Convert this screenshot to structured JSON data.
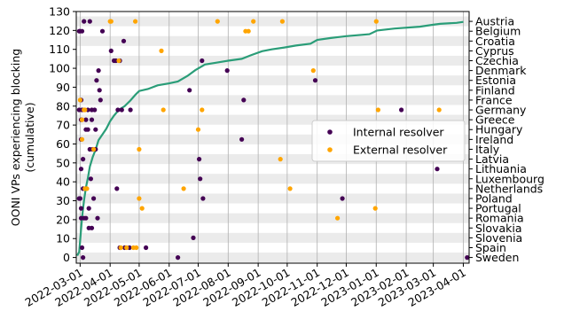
{
  "chart_data": {
    "type": "scatter",
    "xlabel": "",
    "ylabel": [
      "OONI VPs experiencing blocking",
      "(cumulative)"
    ],
    "xlim": [
      "2022-02-25",
      "2023-04-07"
    ],
    "ylim": [
      -3,
      130
    ],
    "left_yticks": [
      0,
      10,
      20,
      30,
      40,
      50,
      60,
      70,
      80,
      90,
      100,
      110,
      120,
      130
    ],
    "xticks": [
      "2022-03-01",
      "2022-04-01",
      "2022-05-01",
      "2022-06-01",
      "2022-07-01",
      "2022-08-01",
      "2022-09-01",
      "2022-10-01",
      "2022-11-01",
      "2022-12-01",
      "2023-01-01",
      "2023-02-01",
      "2023-03-01",
      "2023-04-01"
    ],
    "countries": [
      "Sweden",
      "Spain",
      "Slovenia",
      "Slovakia",
      "Romania",
      "Portugal",
      "Poland",
      "Netherlands",
      "Luxembourg",
      "Lithuania",
      "Latvia",
      "Italy",
      "Ireland",
      "Hungary",
      "Greece",
      "Germany",
      "France",
      "Finland",
      "Estonia",
      "Denmark",
      "Czechia",
      "Cyprus",
      "Croatia",
      "Belgium",
      "Austria"
    ],
    "country_positions": [
      0,
      5.2,
      10.4,
      15.6,
      20.8,
      26,
      31.2,
      36.4,
      41.6,
      46.8,
      52,
      57.2,
      62.4,
      67.6,
      72.8,
      78,
      83.2,
      88.4,
      93.6,
      98.8,
      104,
      109.2,
      114.4,
      119.6,
      124.8
    ],
    "band_color": "#ebebeb",
    "grid": "vertical",
    "legend_position": "center-right",
    "series": [
      {
        "name": "Internal resolver",
        "kind": "points",
        "color": "#440154",
        "points": [
          [
            "2022-03-05",
            124.8
          ],
          [
            "2022-03-11",
            124.8
          ],
          [
            "2022-02-28",
            119.6
          ],
          [
            "2022-03-01",
            119.6
          ],
          [
            "2022-03-03",
            119.6
          ],
          [
            "2022-03-24",
            119.6
          ],
          [
            "2022-04-15",
            114.4
          ],
          [
            "2022-04-02",
            109.2
          ],
          [
            "2022-04-05",
            104
          ],
          [
            "2022-04-07",
            104
          ],
          [
            "2022-04-11",
            104
          ],
          [
            "2022-07-05",
            104
          ],
          [
            "2022-03-20",
            98.8
          ],
          [
            "2022-07-31",
            98.8
          ],
          [
            "2022-03-18",
            93.6
          ],
          [
            "2022-10-30",
            93.6
          ],
          [
            "2022-03-21",
            88.4
          ],
          [
            "2022-06-22",
            88.4
          ],
          [
            "2022-03-02",
            83.2
          ],
          [
            "2022-03-22",
            83.2
          ],
          [
            "2022-08-17",
            83.2
          ],
          [
            "2022-02-28",
            78
          ],
          [
            "2022-03-03",
            78
          ],
          [
            "2022-03-09",
            78
          ],
          [
            "2022-03-13",
            78
          ],
          [
            "2022-03-16",
            78
          ],
          [
            "2022-04-09",
            78
          ],
          [
            "2022-04-13",
            78
          ],
          [
            "2022-04-22",
            78
          ],
          [
            "2023-01-27",
            78
          ],
          [
            "2022-03-02",
            72.8
          ],
          [
            "2022-03-07",
            72.8
          ],
          [
            "2022-03-13",
            72.8
          ],
          [
            "2022-03-07",
            67.6
          ],
          [
            "2022-03-09",
            67.6
          ],
          [
            "2022-03-17",
            67.6
          ],
          [
            "2022-03-02",
            62.4
          ],
          [
            "2022-08-15",
            62.4
          ],
          [
            "2022-03-11",
            57.2
          ],
          [
            "2022-03-14",
            57.2
          ],
          [
            "2022-03-17",
            57.2
          ],
          [
            "2022-03-04",
            52
          ],
          [
            "2022-07-02",
            52
          ],
          [
            "2022-03-02",
            46.8
          ],
          [
            "2023-03-05",
            46.8
          ],
          [
            "2022-03-12",
            41.6
          ],
          [
            "2022-07-03",
            41.6
          ],
          [
            "2022-03-04",
            36.4
          ],
          [
            "2022-04-08",
            36.4
          ],
          [
            "2022-02-28",
            31.2
          ],
          [
            "2022-03-01",
            31.2
          ],
          [
            "2022-03-15",
            31.2
          ],
          [
            "2022-07-06",
            31.2
          ],
          [
            "2022-11-27",
            31.2
          ],
          [
            "2022-03-02",
            26
          ],
          [
            "2022-03-10",
            26
          ],
          [
            "2022-03-02",
            20.8
          ],
          [
            "2022-03-05",
            20.8
          ],
          [
            "2022-03-07",
            20.8
          ],
          [
            "2022-03-19",
            20.8
          ],
          [
            "2022-03-10",
            15.6
          ],
          [
            "2022-03-13",
            15.6
          ],
          [
            "2022-06-26",
            10.4
          ],
          [
            "2022-03-03",
            5.2
          ],
          [
            "2022-04-11",
            5.2
          ],
          [
            "2022-04-16",
            5.2
          ],
          [
            "2022-04-21",
            5.2
          ],
          [
            "2022-05-08",
            5.2
          ],
          [
            "2022-03-04",
            0
          ],
          [
            "2022-06-10",
            0
          ],
          [
            "2023-04-05",
            0
          ]
        ]
      },
      {
        "name": "External resolver",
        "kind": "points",
        "color": "#ffa500",
        "points": [
          [
            "2022-04-01",
            124.8
          ],
          [
            "2022-04-02",
            124.8
          ],
          [
            "2022-04-27",
            124.8
          ],
          [
            "2022-07-21",
            124.8
          ],
          [
            "2022-08-27",
            124.8
          ],
          [
            "2022-09-26",
            124.8
          ],
          [
            "2023-01-01",
            124.8
          ],
          [
            "2022-08-19",
            119.6
          ],
          [
            "2022-08-22",
            119.6
          ],
          [
            "2022-05-24",
            109.2
          ],
          [
            "2022-04-10",
            104
          ],
          [
            "2022-10-28",
            98.8
          ],
          [
            "2022-03-01",
            83.2
          ],
          [
            "2022-03-05",
            78
          ],
          [
            "2022-03-06",
            78
          ],
          [
            "2022-05-26",
            78
          ],
          [
            "2022-07-05",
            78
          ],
          [
            "2023-01-03",
            78
          ],
          [
            "2023-03-07",
            78
          ],
          [
            "2022-03-03",
            72.8
          ],
          [
            "2022-07-01",
            67.6
          ],
          [
            "2022-03-03",
            62.4
          ],
          [
            "2022-03-15",
            57.2
          ],
          [
            "2022-05-01",
            57.2
          ],
          [
            "2022-09-24",
            52
          ],
          [
            "2022-03-06",
            36.4
          ],
          [
            "2022-03-08",
            36.4
          ],
          [
            "2022-06-16",
            36.4
          ],
          [
            "2022-10-04",
            36.4
          ],
          [
            "2022-05-01",
            31.2
          ],
          [
            "2022-05-04",
            26
          ],
          [
            "2022-12-31",
            26
          ],
          [
            "2022-11-22",
            20.8
          ],
          [
            "2022-04-12",
            5.2
          ],
          [
            "2022-04-18",
            5.2
          ],
          [
            "2022-04-25",
            5.2
          ],
          [
            "2022-04-28",
            5.2
          ]
        ]
      },
      {
        "name": "Cumulative",
        "kind": "line",
        "color": "#2a9d78",
        "points": [
          [
            "2022-02-26",
            1
          ],
          [
            "2022-02-28",
            3
          ],
          [
            "2022-03-01",
            9
          ],
          [
            "2022-03-03",
            21
          ],
          [
            "2022-03-05",
            30
          ],
          [
            "2022-03-07",
            37
          ],
          [
            "2022-03-09",
            42
          ],
          [
            "2022-03-11",
            48
          ],
          [
            "2022-03-14",
            53
          ],
          [
            "2022-03-17",
            57
          ],
          [
            "2022-03-20",
            62
          ],
          [
            "2022-03-24",
            65
          ],
          [
            "2022-03-28",
            68
          ],
          [
            "2022-04-01",
            72
          ],
          [
            "2022-04-05",
            75
          ],
          [
            "2022-04-10",
            78
          ],
          [
            "2022-04-16",
            80
          ],
          [
            "2022-04-22",
            83
          ],
          [
            "2022-04-27",
            86
          ],
          [
            "2022-05-01",
            88
          ],
          [
            "2022-05-10",
            89
          ],
          [
            "2022-05-20",
            91
          ],
          [
            "2022-06-01",
            92
          ],
          [
            "2022-06-10",
            93
          ],
          [
            "2022-06-20",
            96
          ],
          [
            "2022-06-28",
            99
          ],
          [
            "2022-07-08",
            102
          ],
          [
            "2022-07-20",
            103
          ],
          [
            "2022-08-01",
            104
          ],
          [
            "2022-08-15",
            105
          ],
          [
            "2022-08-25",
            107
          ],
          [
            "2022-09-05",
            109
          ],
          [
            "2022-09-15",
            110
          ],
          [
            "2022-09-28",
            111
          ],
          [
            "2022-10-10",
            112
          ],
          [
            "2022-10-25",
            113
          ],
          [
            "2022-11-01",
            115
          ],
          [
            "2022-11-15",
            116
          ],
          [
            "2022-12-01",
            117
          ],
          [
            "2022-12-25",
            118
          ],
          [
            "2023-01-02",
            120
          ],
          [
            "2023-01-20",
            121
          ],
          [
            "2023-02-15",
            122
          ],
          [
            "2023-03-01",
            123
          ],
          [
            "2023-03-08",
            123.5
          ],
          [
            "2023-03-25",
            124
          ],
          [
            "2023-04-01",
            124.5
          ]
        ]
      }
    ]
  }
}
